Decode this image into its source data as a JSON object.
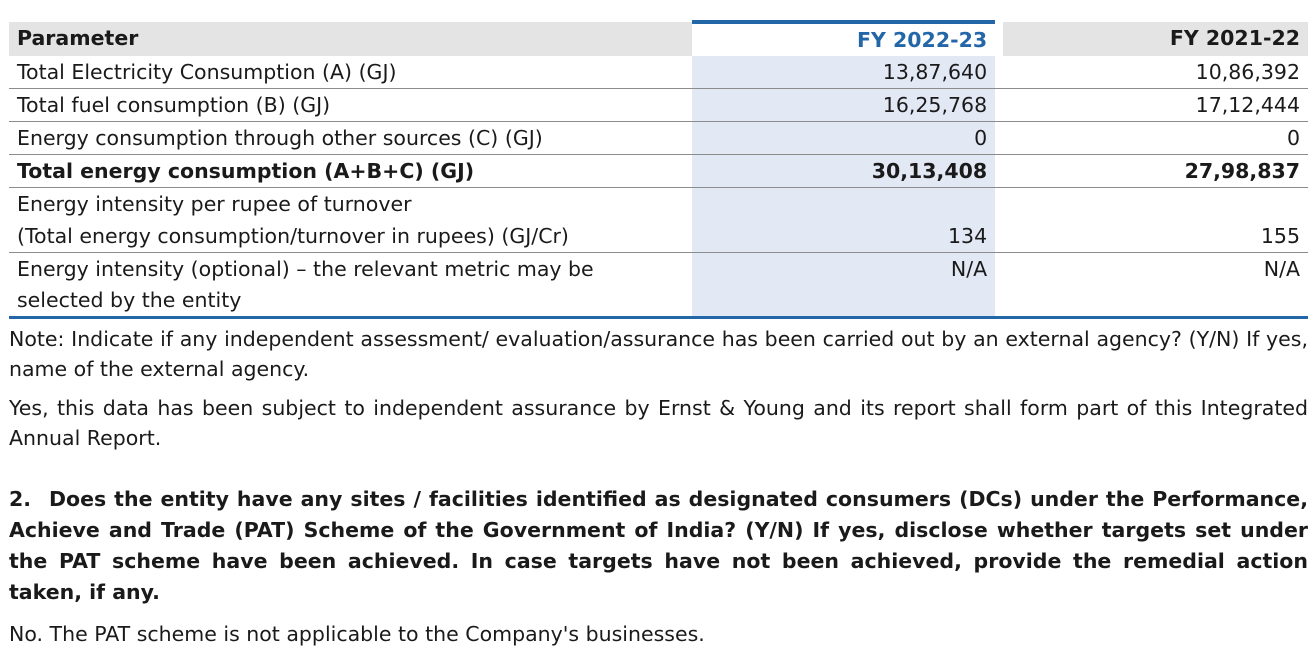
{
  "table": {
    "headers": {
      "parameter": "Parameter",
      "current_year": "FY 2022-23",
      "previous_year": "FY 2021-22"
    },
    "rows": [
      {
        "parameter": "Total Electricity Consumption (A) (GJ)",
        "fy2223": "13,87,640",
        "fy2122": "10,86,392"
      },
      {
        "parameter": "Total fuel consumption (B) (GJ)",
        "fy2223": "16,25,768",
        "fy2122": "17,12,444"
      },
      {
        "parameter": "Energy consumption through other sources (C) (GJ)",
        "fy2223": "0",
        "fy2122": "0"
      },
      {
        "parameter": "Total energy consumption (A+B+C) (GJ)",
        "fy2223": "30,13,408",
        "fy2122": "27,98,837"
      },
      {
        "parameter": "Energy intensity per rupee of turnover",
        "fy2223": "",
        "fy2122": ""
      },
      {
        "parameter": "(Total energy consumption/turnover in rupees) (GJ/Cr)",
        "fy2223": "134",
        "fy2122": "155"
      },
      {
        "parameter": "Energy intensity (optional) – the relevant metric may be selected by the entity",
        "fy2223": "N/A",
        "fy2122": "N/A"
      }
    ]
  },
  "note": "Note: Indicate if any independent assessment/ evaluation/assurance has been carried out by an external agency? (Y/N) If yes, name of the external agency.",
  "assurance_text": "Yes, this data has been subject to independent assurance by Ernst & Young and its report shall form part of this Integrated Annual Report.",
  "question": {
    "number": "2.",
    "text": "Does the entity have any sites / facilities identified as designated consumers (DCs) under the Performance, Achieve and Trade (PAT) Scheme of the Government of India? (Y/N) If yes, disclose whether targets set under the PAT scheme have been achieved. In case targets have not been achieved, provide the remedial action taken, if any."
  },
  "answer": "No. The PAT scheme is not applicable to the Company's businesses.",
  "colors": {
    "accent": "#2467a8",
    "current_column_bg": "#e3e8f5",
    "header_bg": "#e4e4e4"
  }
}
